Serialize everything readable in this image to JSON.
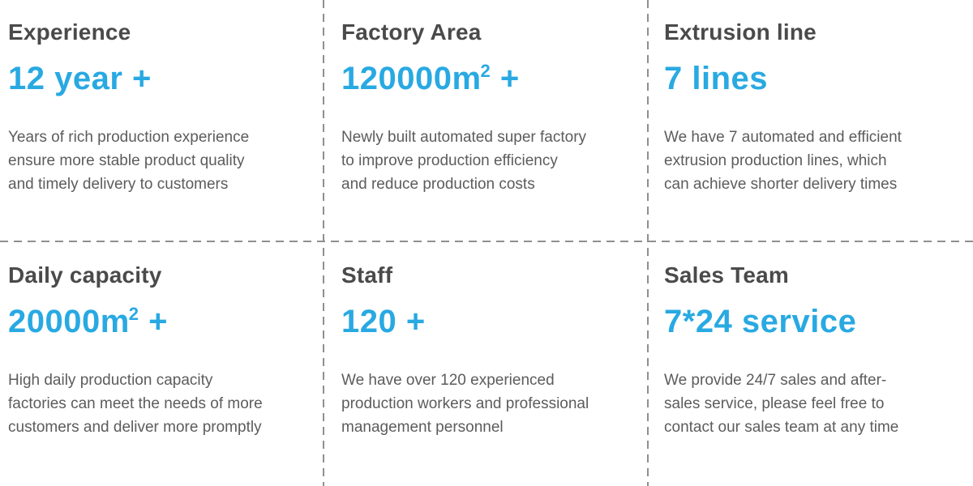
{
  "colors": {
    "accent": "#29a9e2",
    "title": "#4a4a4a",
    "body": "#5c5c5c",
    "divider": "#8f8f8f"
  },
  "cards": [
    {
      "title": "Experience",
      "value": {
        "main": "12 year +",
        "sup": "",
        "tail": ""
      },
      "description": [
        "Years of rich production experience",
        "ensure more stable product quality",
        "and timely delivery to customers"
      ]
    },
    {
      "title": "Factory Area",
      "value": {
        "main": "120000m",
        "sup": "2",
        "tail": " +"
      },
      "description": [
        "Newly built automated super factory",
        "to improve production efficiency",
        "and reduce production costs"
      ]
    },
    {
      "title": "Extrusion line",
      "value": {
        "main": "7 lines",
        "sup": "",
        "tail": ""
      },
      "description": [
        "We have 7 automated and efficient",
        "extrusion production lines, which",
        "can achieve shorter delivery times"
      ]
    },
    {
      "title": "Daily capacity",
      "value": {
        "main": "20000m",
        "sup": "2",
        "tail": " +"
      },
      "description": [
        "High daily production capacity",
        "factories can meet the needs of more",
        "customers and deliver more promptly"
      ]
    },
    {
      "title": "Staff",
      "value": {
        "main": "120 +",
        "sup": "",
        "tail": ""
      },
      "description": [
        "We have over 120 experienced",
        "production workers and professional",
        "management personnel"
      ]
    },
    {
      "title": "Sales Team",
      "value": {
        "main": "7*24 service",
        "sup": "",
        "tail": ""
      },
      "description": [
        "We provide 24/7 sales and after-",
        "sales service, please feel free to",
        "contact our sales team at any time"
      ]
    }
  ]
}
